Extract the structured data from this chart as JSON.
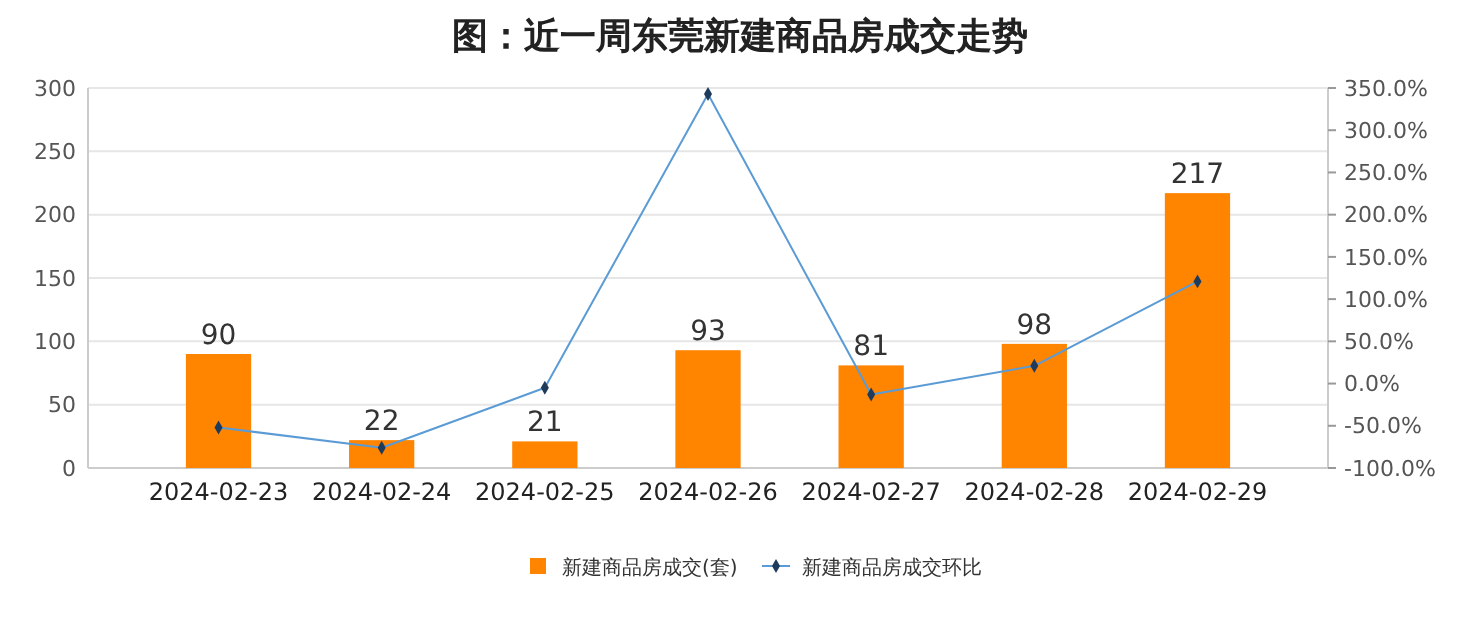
{
  "chart_data": {
    "type": "bar",
    "title": "图：近一周东莞新建商品房成交走势",
    "categories": [
      "2024-02-23",
      "2024-02-24",
      "2024-02-25",
      "2024-02-26",
      "2024-02-27",
      "2024-02-28",
      "2024-02-29"
    ],
    "series": [
      {
        "name": "新建商品房成交(套)",
        "color": "#ff8400",
        "values": [
          90,
          22,
          21,
          93,
          81,
          98,
          217
        ],
        "value_labels": [
          "90",
          "22",
          "21",
          "93",
          "81",
          "98",
          "217"
        ]
      },
      {
        "name": "新建商品房成交环比",
        "type": "line",
        "axis": "y2",
        "color": "#5b9bd5",
        "marker": "diamond",
        "values": [
          -52,
          -76,
          -5,
          343,
          -13,
          21,
          121
        ]
      }
    ],
    "ylim": [
      0,
      300
    ],
    "yticks": [
      0,
      50,
      100,
      150,
      200,
      250,
      300
    ],
    "y2lim": [
      -100,
      350
    ],
    "y2ticks": [
      {
        "value": -100,
        "label": "-100.0%"
      },
      {
        "value": -50,
        "label": "-50.0%"
      },
      {
        "value": 0,
        "label": "0.0%"
      },
      {
        "value": 50,
        "label": "50.0%"
      },
      {
        "value": 100,
        "label": "100.0%"
      },
      {
        "value": 150,
        "label": "150.0%"
      },
      {
        "value": 200,
        "label": "200.0%"
      },
      {
        "value": 250,
        "label": "250.0%"
      },
      {
        "value": 300,
        "label": "300.0%"
      },
      {
        "value": 350,
        "label": "350.0%"
      }
    ],
    "grid": "y",
    "legend": "bottom"
  }
}
